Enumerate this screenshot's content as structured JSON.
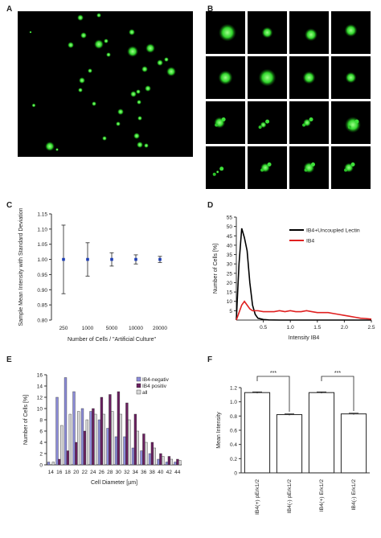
{
  "panels": {
    "A": "A",
    "B": "B",
    "C": "C",
    "D": "D",
    "E": "E",
    "F": "F"
  },
  "chart_data": [
    {
      "panel": "C",
      "type": "scatter",
      "categories": [
        "250",
        "1000",
        "5000",
        "10000",
        "20000"
      ],
      "values": [
        1.0,
        1.0,
        1.0,
        1.0,
        1.0
      ],
      "errors": [
        0.113,
        0.055,
        0.022,
        0.015,
        0.01
      ],
      "xlabel": "Number of Cells / \"Artificial Culture\"",
      "ylabel": "Sample Mean Intensity with Standard Deviation",
      "ylim": [
        0.8,
        1.15
      ],
      "yticks": [
        "0.80",
        "0.85",
        "0.90",
        "0.95",
        "1.00",
        "1.05",
        "1.10",
        "1.15"
      ],
      "color": "#1f3fb5"
    },
    {
      "panel": "D",
      "type": "line",
      "xlabel": "Intensity IB4",
      "ylabel": "Number of Cells [%]",
      "xlim": [
        0,
        2.5
      ],
      "ylim": [
        0,
        55
      ],
      "xticks": [
        "0.5",
        "1.0",
        "1.5",
        "2.0",
        "2.5"
      ],
      "yticks": [
        "5",
        "10",
        "15",
        "20",
        "25",
        "30",
        "35",
        "40",
        "45",
        "50",
        "55"
      ],
      "legend": "top-right",
      "series": [
        {
          "name": "IB4+Uncoupled Lectin",
          "color": "#000000",
          "x": [
            0,
            0.05,
            0.1,
            0.15,
            0.2,
            0.25,
            0.3,
            0.35,
            0.4,
            0.5,
            0.6,
            0.8,
            1.0,
            1.5,
            2.0,
            2.5
          ],
          "y": [
            0,
            30,
            49,
            44,
            37,
            20,
            8,
            3,
            1,
            0.3,
            0.1,
            0,
            0,
            0,
            0,
            0
          ]
        },
        {
          "name": "IB4",
          "color": "#e02020",
          "x": [
            0,
            0.05,
            0.1,
            0.15,
            0.2,
            0.25,
            0.3,
            0.4,
            0.5,
            0.6,
            0.7,
            0.8,
            0.9,
            1.0,
            1.1,
            1.2,
            1.3,
            1.4,
            1.5,
            1.6,
            1.7,
            1.8,
            1.9,
            2.0,
            2.1,
            2.2,
            2.3,
            2.4,
            2.5
          ],
          "y": [
            0,
            4,
            8,
            10,
            8,
            6,
            5,
            5,
            4.5,
            4.5,
            4.5,
            5,
            4.5,
            5,
            4.5,
            4.5,
            5,
            4.5,
            4,
            4,
            4,
            3.5,
            3,
            2.5,
            2,
            1.5,
            1,
            0.8,
            0.5
          ]
        }
      ]
    },
    {
      "panel": "E",
      "type": "bar",
      "categories": [
        "14",
        "16",
        "18",
        "20",
        "22",
        "24",
        "26",
        "28",
        "30",
        "32",
        "34",
        "36",
        "38",
        "40",
        "42",
        "44"
      ],
      "xlabel": "Cell Diameter [µm]",
      "ylabel": "Number of Cells [%]",
      "ylim": [
        0,
        16
      ],
      "yticks": [
        "0",
        "2",
        "4",
        "6",
        "8",
        "10",
        "12",
        "14",
        "16"
      ],
      "legend": "top-right",
      "series": [
        {
          "name": "IB4-negativ",
          "color": "#8c8cd9",
          "values": [
            0.5,
            12,
            15.5,
            13,
            10,
            9.5,
            8,
            6.5,
            5,
            5,
            3,
            2.5,
            2,
            1,
            0.5,
            0.5
          ]
        },
        {
          "name": "IB4 positiv",
          "color": "#6a1f5f",
          "values": [
            0,
            1,
            2.5,
            4,
            6,
            10,
            12,
            12.5,
            13,
            11,
            9,
            5.5,
            4,
            2,
            1.5,
            1
          ]
        },
        {
          "name": "all",
          "color": "#d8d8d8",
          "values": [
            0.5,
            7,
            9,
            9.5,
            8,
            9,
            9,
            9.5,
            9,
            8,
            6,
            4,
            3,
            1.5,
            1,
            0.8
          ]
        }
      ]
    },
    {
      "panel": "F",
      "type": "bar",
      "categories": [
        "IB4(+) pErk1/2",
        "IB4(-) pErk1/2",
        "IB4(+) Erk1/2",
        "IB4(-) Erk1/2"
      ],
      "values": [
        1.13,
        0.82,
        1.13,
        0.83
      ],
      "errors": [
        0.01,
        0.01,
        0.01,
        0.01
      ],
      "ylabel": "Mean Intensity",
      "ylim": [
        0,
        1.2
      ],
      "yticks": [
        "0",
        "0.2",
        "0.4",
        "0.6",
        "0.8",
        "1.0",
        "1.2"
      ],
      "significance": [
        "***",
        "***"
      ]
    }
  ]
}
